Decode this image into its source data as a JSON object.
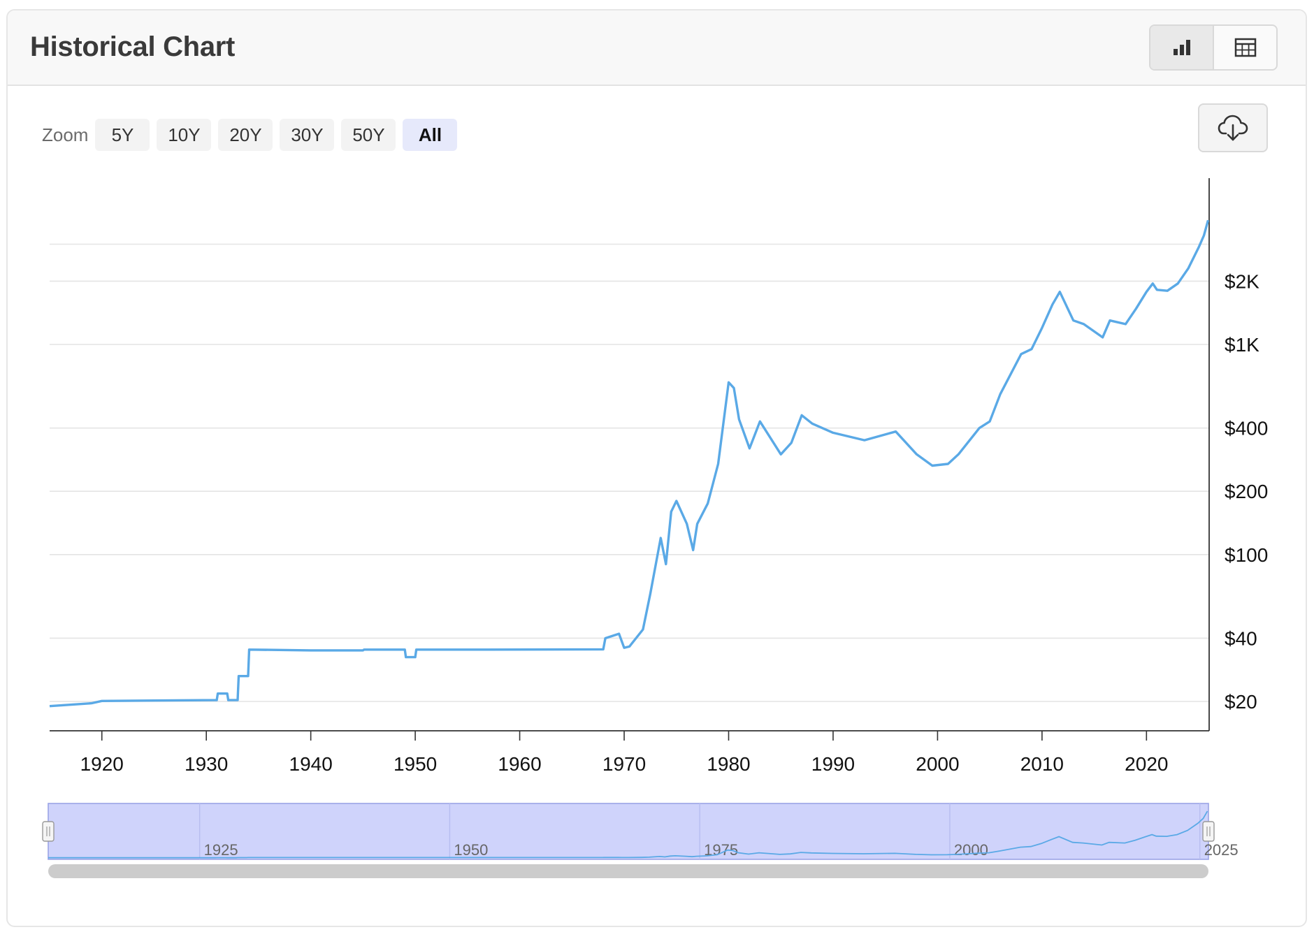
{
  "header": {
    "title": "Historical Chart",
    "view_buttons": [
      {
        "icon": "bar-chart-icon",
        "active": true
      },
      {
        "icon": "table-icon",
        "active": false
      }
    ]
  },
  "toolbar": {
    "zoom_label": "Zoom",
    "zoom_options": [
      "5Y",
      "10Y",
      "20Y",
      "30Y",
      "50Y",
      "All"
    ],
    "zoom_selected": "All",
    "download_icon": "cloud-download-icon"
  },
  "colors": {
    "line": "#5aa9e6",
    "navigator_fill": "#cfd3fb",
    "navigator_border": "#9ba4e6",
    "gridline": "#e4e4e4",
    "scrollbar": "#cccccc"
  },
  "chart_data": {
    "type": "line",
    "y_scale": "log",
    "x_range": [
      1915,
      2026
    ],
    "y_range": [
      15,
      4200
    ],
    "grid": true,
    "x_tick_labels": [
      "1920",
      "1930",
      "1940",
      "1950",
      "1960",
      "1970",
      "1980",
      "1990",
      "2000",
      "2010",
      "2020"
    ],
    "y_ticks": [
      {
        "value": 20,
        "label": "$20"
      },
      {
        "value": 40,
        "label": "$40"
      },
      {
        "value": 100,
        "label": "$100"
      },
      {
        "value": 200,
        "label": "$200"
      },
      {
        "value": 400,
        "label": "$400"
      },
      {
        "value": 1000,
        "label": "$1K"
      },
      {
        "value": 2000,
        "label": "$2K"
      },
      {
        "value": 3000,
        "label": ""
      }
    ],
    "series": [
      {
        "values": [
          [
            1915,
            19.0
          ],
          [
            1919,
            19.6
          ],
          [
            1920,
            20.1
          ],
          [
            1925,
            20.2
          ],
          [
            1931,
            20.3
          ],
          [
            1931.1,
            21.8
          ],
          [
            1932,
            21.8
          ],
          [
            1932.1,
            20.3
          ],
          [
            1933,
            20.3
          ],
          [
            1933.1,
            26.4
          ],
          [
            1934,
            26.4
          ],
          [
            1934.1,
            35.3
          ],
          [
            1940,
            35.0
          ],
          [
            1945,
            35.0
          ],
          [
            1945.1,
            35.3
          ],
          [
            1949,
            35.3
          ],
          [
            1949.1,
            32.5
          ],
          [
            1950,
            32.5
          ],
          [
            1950.1,
            35.3
          ],
          [
            1957,
            35.3
          ],
          [
            1968,
            35.4
          ],
          [
            1968.2,
            40.0
          ],
          [
            1969.5,
            42.0
          ],
          [
            1970,
            36.0
          ],
          [
            1970.5,
            36.5
          ],
          [
            1971.8,
            44.0
          ],
          [
            1972.5,
            65.0
          ],
          [
            1973.5,
            120.0
          ],
          [
            1974,
            90.0
          ],
          [
            1974.5,
            160.0
          ],
          [
            1975,
            180.0
          ],
          [
            1976,
            140.0
          ],
          [
            1976.6,
            105.0
          ],
          [
            1977,
            140.0
          ],
          [
            1978,
            175.0
          ],
          [
            1979,
            270.0
          ],
          [
            1980,
            660.0
          ],
          [
            1980.5,
            620.0
          ],
          [
            1981,
            440.0
          ],
          [
            1982,
            320.0
          ],
          [
            1983,
            430.0
          ],
          [
            1985,
            300.0
          ],
          [
            1986,
            340.0
          ],
          [
            1987,
            460.0
          ],
          [
            1988,
            420.0
          ],
          [
            1990,
            380.0
          ],
          [
            1993,
            350.0
          ],
          [
            1996,
            385.0
          ],
          [
            1998,
            300.0
          ],
          [
            1999.5,
            265.0
          ],
          [
            2001,
            270.0
          ],
          [
            2002,
            300.0
          ],
          [
            2004,
            400.0
          ],
          [
            2005,
            430.0
          ],
          [
            2006,
            580.0
          ],
          [
            2008,
            900.0
          ],
          [
            2009,
            950.0
          ],
          [
            2010,
            1200.0
          ],
          [
            2011,
            1550.0
          ],
          [
            2011.7,
            1780.0
          ],
          [
            2013,
            1300.0
          ],
          [
            2014,
            1250.0
          ],
          [
            2015.8,
            1080.0
          ],
          [
            2016.5,
            1300.0
          ],
          [
            2018,
            1250.0
          ],
          [
            2019,
            1480.0
          ],
          [
            2020,
            1780.0
          ],
          [
            2020.6,
            1950.0
          ],
          [
            2021,
            1820.0
          ],
          [
            2022,
            1800.0
          ],
          [
            2023,
            1950.0
          ],
          [
            2024,
            2300.0
          ],
          [
            2025,
            2900.0
          ],
          [
            2025.5,
            3300.0
          ],
          [
            2025.9,
            3900.0
          ]
        ]
      }
    ],
    "navigator": {
      "x_tick_labels": [
        "1925",
        "1950",
        "1975",
        "2000",
        "2025"
      ],
      "selected_range": [
        1915,
        2026
      ]
    }
  }
}
